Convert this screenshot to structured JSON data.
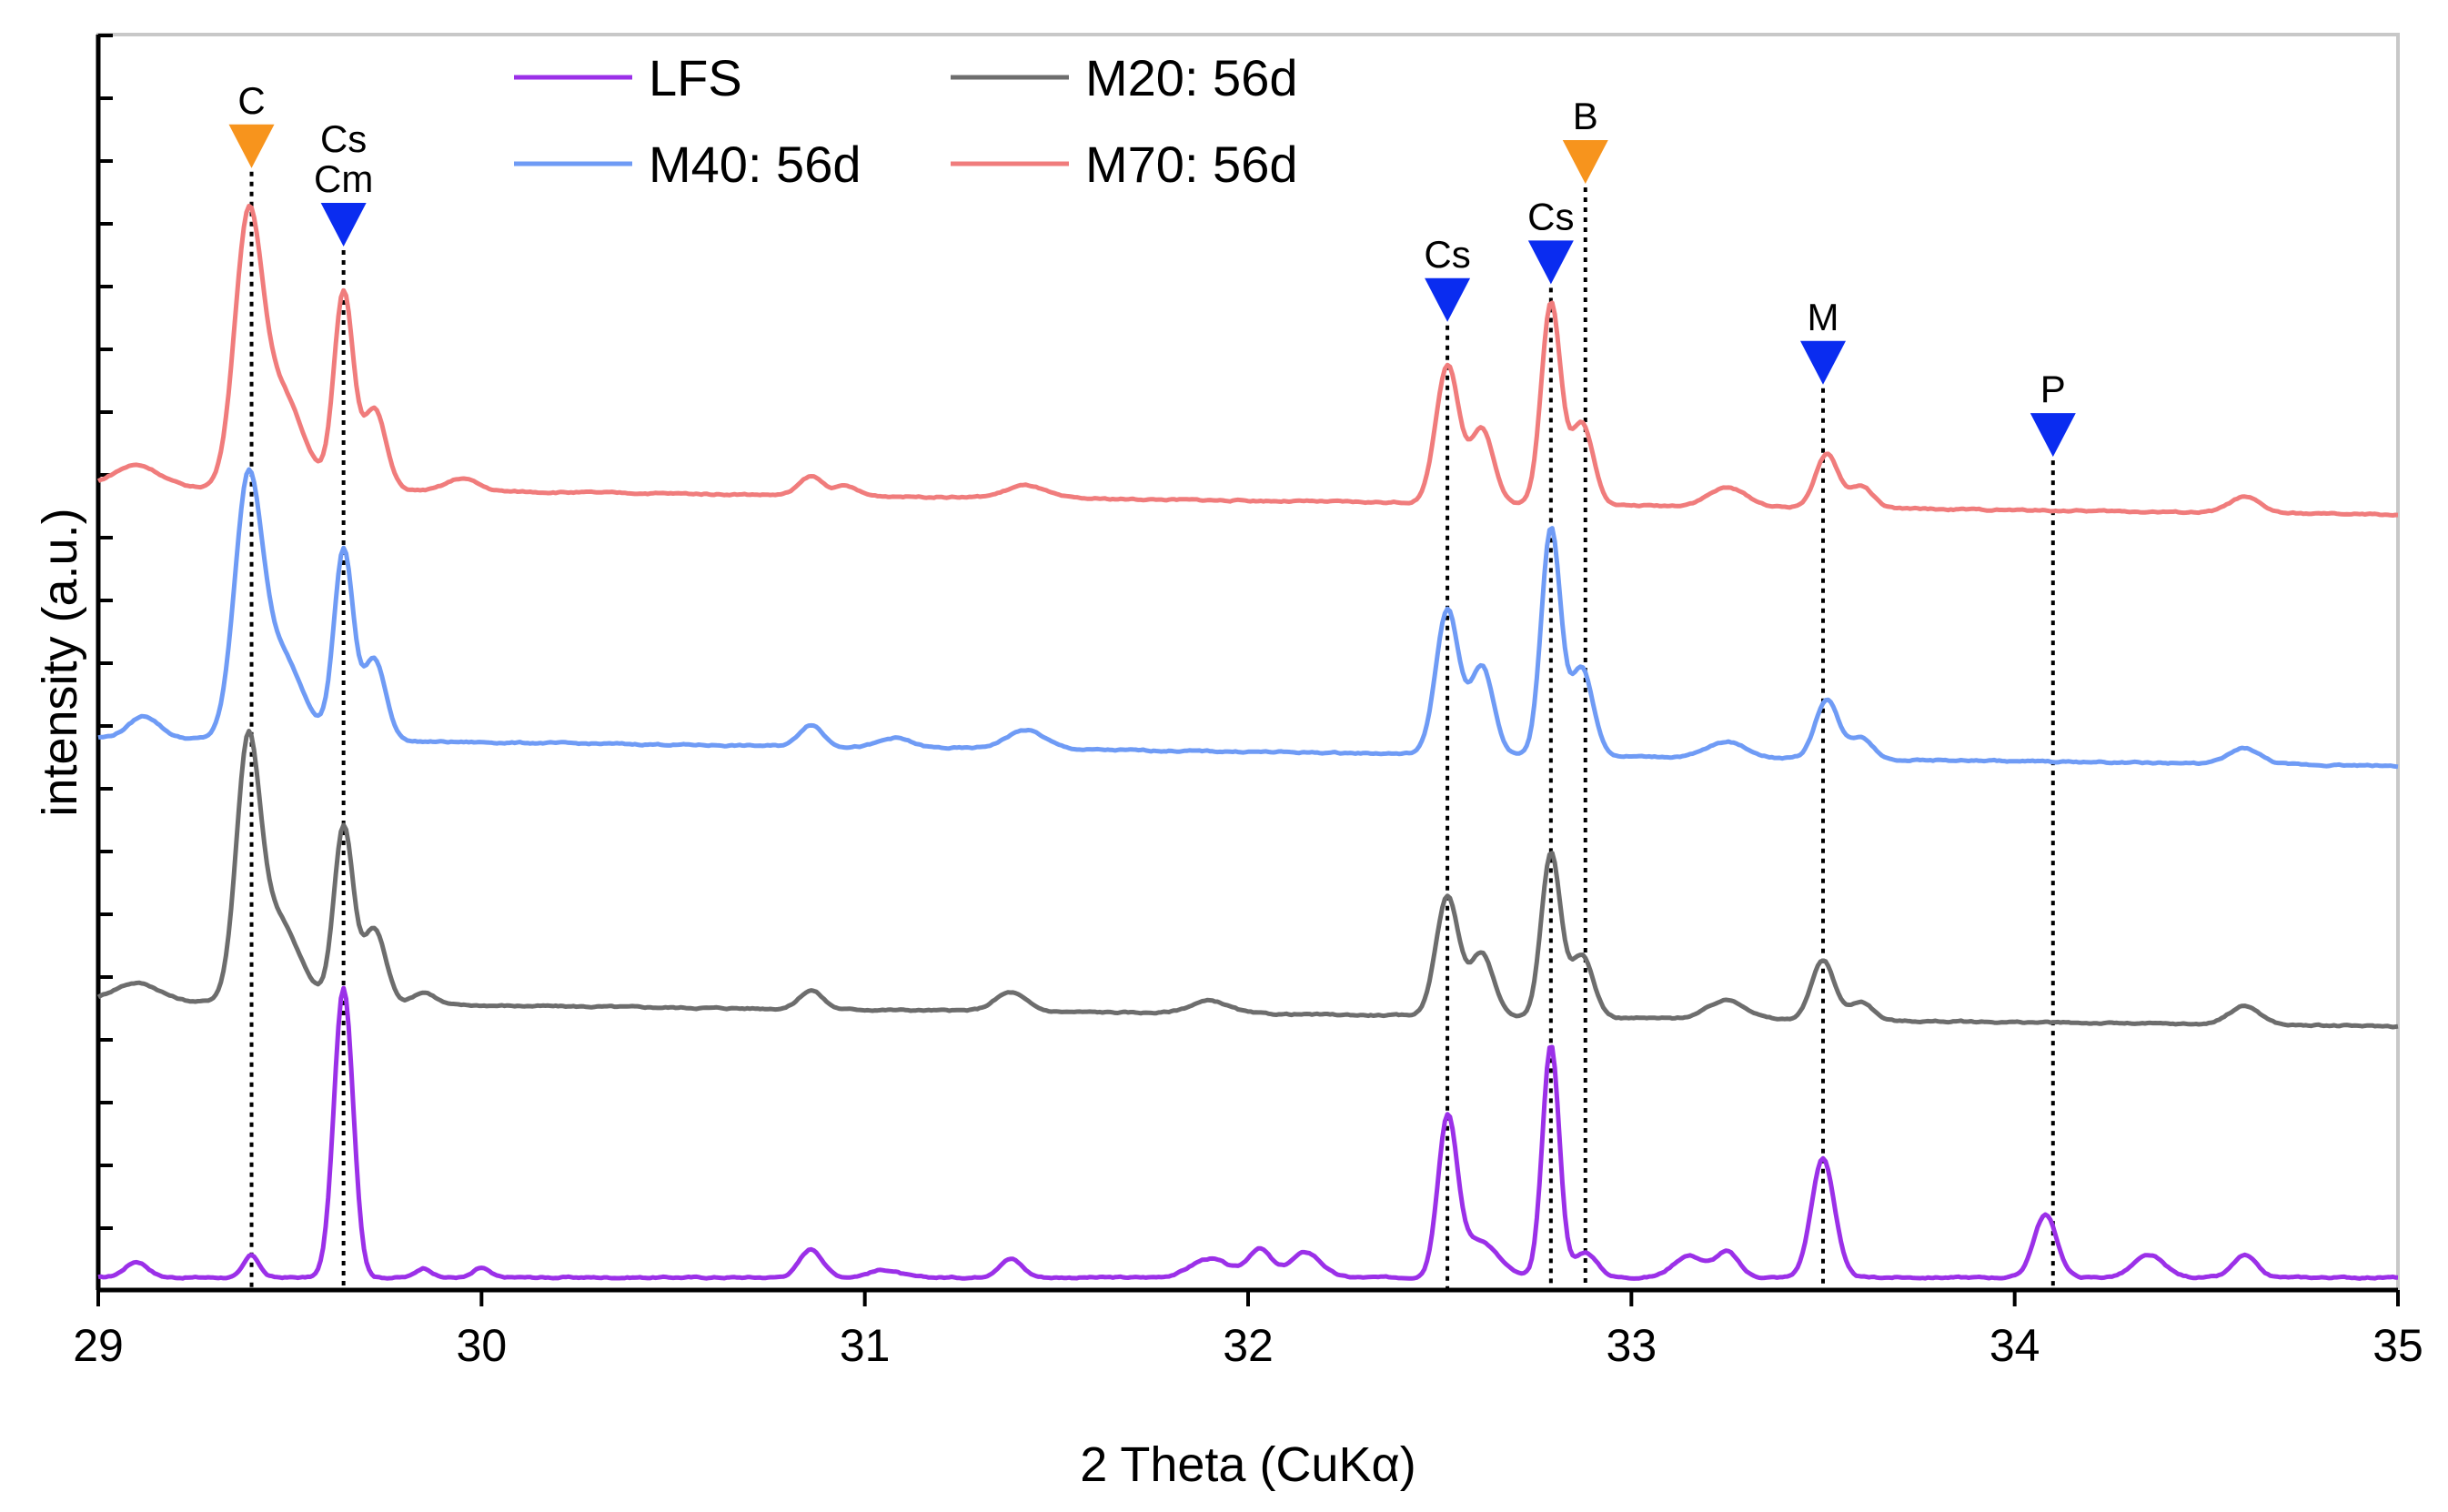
{
  "chart_data": {
    "type": "line",
    "title": "",
    "xlabel": "2 Theta (CuKα)",
    "ylabel": "intensity (a.u.)",
    "xlim": [
      29,
      35
    ],
    "ylim": [
      0,
      20
    ],
    "x_ticks": [
      29,
      30,
      31,
      32,
      33,
      34,
      35
    ],
    "x_tick_labels": [
      "29",
      "30",
      "31",
      "32",
      "33",
      "34",
      "35"
    ],
    "y_tick_labels_shown": false,
    "series": [
      {
        "name": "LFS",
        "color": "#9b30e8",
        "baseline": 0.2,
        "tail": 0.2,
        "noise": 0.03,
        "bumps": [
          {
            "x": 29.1,
            "h": 0.25,
            "w": 0.03
          },
          {
            "x": 29.4,
            "h": 0.35,
            "w": 0.02
          },
          {
            "x": 29.64,
            "h": 4.6,
            "w": 0.025
          },
          {
            "x": 29.85,
            "h": 0.15,
            "w": 0.02
          },
          {
            "x": 30.0,
            "h": 0.15,
            "w": 0.02
          },
          {
            "x": 30.86,
            "h": 0.45,
            "w": 0.03
          },
          {
            "x": 31.05,
            "h": 0.12,
            "w": 0.04
          },
          {
            "x": 31.38,
            "h": 0.3,
            "w": 0.03
          },
          {
            "x": 31.9,
            "h": 0.3,
            "w": 0.05
          },
          {
            "x": 32.03,
            "h": 0.45,
            "w": 0.03
          },
          {
            "x": 32.15,
            "h": 0.4,
            "w": 0.04
          },
          {
            "x": 32.52,
            "h": 2.45,
            "w": 0.025
          },
          {
            "x": 32.6,
            "h": 0.6,
            "w": 0.05
          },
          {
            "x": 32.79,
            "h": 3.7,
            "w": 0.022
          },
          {
            "x": 32.88,
            "h": 0.4,
            "w": 0.03
          },
          {
            "x": 33.15,
            "h": 0.35,
            "w": 0.04
          },
          {
            "x": 33.25,
            "h": 0.4,
            "w": 0.03
          },
          {
            "x": 33.5,
            "h": 1.9,
            "w": 0.03
          },
          {
            "x": 34.08,
            "h": 1.0,
            "w": 0.03
          },
          {
            "x": 34.35,
            "h": 0.35,
            "w": 0.04
          },
          {
            "x": 34.6,
            "h": 0.35,
            "w": 0.03
          }
        ]
      },
      {
        "name": "M20: 56d",
        "color": "#6d6d6d",
        "baseline": 4.6,
        "tail": 4.2,
        "noise": 0.03,
        "bumps": [
          {
            "x": 29.1,
            "h": 0.3,
            "w": 0.06
          },
          {
            "x": 29.39,
            "h": 3.6,
            "w": 0.03
          },
          {
            "x": 29.46,
            "h": 1.4,
            "w": 0.06
          },
          {
            "x": 29.64,
            "h": 2.8,
            "w": 0.025
          },
          {
            "x": 29.72,
            "h": 1.2,
            "w": 0.03
          },
          {
            "x": 29.85,
            "h": 0.2,
            "w": 0.03
          },
          {
            "x": 30.86,
            "h": 0.3,
            "w": 0.03
          },
          {
            "x": 31.38,
            "h": 0.3,
            "w": 0.04
          },
          {
            "x": 31.9,
            "h": 0.2,
            "w": 0.05
          },
          {
            "x": 32.52,
            "h": 1.9,
            "w": 0.03
          },
          {
            "x": 32.61,
            "h": 1.0,
            "w": 0.03
          },
          {
            "x": 32.79,
            "h": 2.6,
            "w": 0.025
          },
          {
            "x": 32.87,
            "h": 1.0,
            "w": 0.03
          },
          {
            "x": 33.25,
            "h": 0.3,
            "w": 0.05
          },
          {
            "x": 33.5,
            "h": 0.95,
            "w": 0.03
          },
          {
            "x": 33.6,
            "h": 0.3,
            "w": 0.03
          },
          {
            "x": 34.6,
            "h": 0.3,
            "w": 0.04
          }
        ]
      },
      {
        "name": "M40: 56d",
        "color": "#6f9bf5",
        "baseline": 8.8,
        "tail": 8.35,
        "noise": 0.03,
        "bumps": [
          {
            "x": 29.12,
            "h": 0.35,
            "w": 0.04
          },
          {
            "x": 29.39,
            "h": 3.7,
            "w": 0.035
          },
          {
            "x": 29.47,
            "h": 1.4,
            "w": 0.06
          },
          {
            "x": 29.64,
            "h": 3.0,
            "w": 0.025
          },
          {
            "x": 29.72,
            "h": 1.3,
            "w": 0.03
          },
          {
            "x": 30.86,
            "h": 0.35,
            "w": 0.03
          },
          {
            "x": 31.08,
            "h": 0.15,
            "w": 0.04
          },
          {
            "x": 31.42,
            "h": 0.3,
            "w": 0.05
          },
          {
            "x": 32.52,
            "h": 2.3,
            "w": 0.03
          },
          {
            "x": 32.61,
            "h": 1.4,
            "w": 0.03
          },
          {
            "x": 32.79,
            "h": 3.6,
            "w": 0.025
          },
          {
            "x": 32.87,
            "h": 1.4,
            "w": 0.03
          },
          {
            "x": 33.25,
            "h": 0.25,
            "w": 0.05
          },
          {
            "x": 33.51,
            "h": 0.95,
            "w": 0.03
          },
          {
            "x": 33.6,
            "h": 0.35,
            "w": 0.03
          },
          {
            "x": 34.6,
            "h": 0.25,
            "w": 0.04
          }
        ]
      },
      {
        "name": "M70: 56d",
        "color": "#f07c7c",
        "baseline": 12.8,
        "tail": 12.35,
        "noise": 0.03,
        "bumps": [
          {
            "x": 29.1,
            "h": 0.35,
            "w": 0.06
          },
          {
            "x": 29.39,
            "h": 3.8,
            "w": 0.035
          },
          {
            "x": 29.47,
            "h": 1.6,
            "w": 0.06
          },
          {
            "x": 29.64,
            "h": 3.1,
            "w": 0.025
          },
          {
            "x": 29.72,
            "h": 1.3,
            "w": 0.03
          },
          {
            "x": 29.95,
            "h": 0.2,
            "w": 0.04
          },
          {
            "x": 30.86,
            "h": 0.3,
            "w": 0.03
          },
          {
            "x": 30.95,
            "h": 0.15,
            "w": 0.03
          },
          {
            "x": 31.42,
            "h": 0.2,
            "w": 0.05
          },
          {
            "x": 32.52,
            "h": 2.2,
            "w": 0.03
          },
          {
            "x": 32.61,
            "h": 1.2,
            "w": 0.03
          },
          {
            "x": 32.79,
            "h": 3.2,
            "w": 0.025
          },
          {
            "x": 32.87,
            "h": 1.3,
            "w": 0.03
          },
          {
            "x": 33.25,
            "h": 0.3,
            "w": 0.05
          },
          {
            "x": 33.51,
            "h": 0.85,
            "w": 0.03
          },
          {
            "x": 33.6,
            "h": 0.35,
            "w": 0.03
          },
          {
            "x": 34.6,
            "h": 0.25,
            "w": 0.04
          }
        ]
      }
    ],
    "reference_lines": [
      {
        "label": "C",
        "x": 29.4,
        "marker_color": "#f7941d",
        "label_lines": [
          "C"
        ],
        "marker_y": 18.25
      },
      {
        "label": "Cs Cm",
        "x": 29.64,
        "marker_color": "#0a2cf0",
        "label_lines": [
          "Cs",
          "Cm"
        ],
        "marker_y": 17.0
      },
      {
        "label": "Cs",
        "x": 32.52,
        "marker_color": "#0a2cf0",
        "label_lines": [
          "Cs"
        ],
        "marker_y": 15.8
      },
      {
        "label": "Cs",
        "x": 32.79,
        "marker_color": "#0a2cf0",
        "label_lines": [
          "Cs"
        ],
        "marker_y": 16.4
      },
      {
        "label": "B",
        "x": 32.88,
        "marker_color": "#f7941d",
        "label_lines": [
          "B"
        ],
        "marker_y": 18.0
      },
      {
        "label": "M",
        "x": 33.5,
        "marker_color": "#0a2cf0",
        "label_lines": [
          "M"
        ],
        "marker_y": 14.8
      },
      {
        "label": "P",
        "x": 34.1,
        "marker_color": "#0a2cf0",
        "label_lines": [
          "P"
        ],
        "marker_y": 13.65
      }
    ],
    "legend": [
      {
        "name": "LFS",
        "color": "#9b30e8"
      },
      {
        "name": "M20: 56d",
        "color": "#6d6d6d"
      },
      {
        "name": "M40: 56d",
        "color": "#6f9bf5"
      },
      {
        "name": "M70: 56d",
        "color": "#f07c7c"
      }
    ],
    "legend_position": "top-left"
  }
}
